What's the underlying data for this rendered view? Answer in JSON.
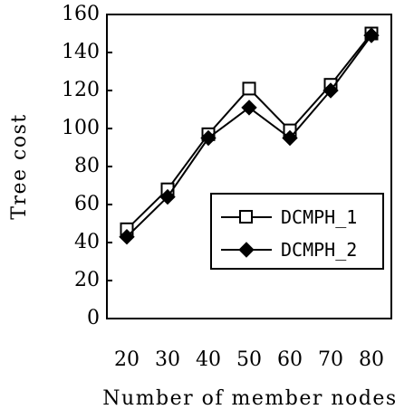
{
  "chart_data": {
    "type": "line",
    "title": "",
    "xlabel": "Number of member nodes",
    "ylabel": "Tree cost",
    "categories": [
      "20",
      "30",
      "40",
      "50",
      "60",
      "70",
      "80"
    ],
    "x": [
      20,
      30,
      40,
      50,
      60,
      70,
      80
    ],
    "ylim": [
      0,
      160
    ],
    "yticks": [
      0,
      20,
      40,
      60,
      80,
      100,
      120,
      140,
      160
    ],
    "grid": false,
    "legend_position": "lower-right",
    "series": [
      {
        "name": "DCMPH_1",
        "marker": "square-open",
        "color": "#000000",
        "values": [
          47,
          68,
          97,
          121,
          99,
          123,
          150
        ]
      },
      {
        "name": "DCMPH_2",
        "marker": "diamond-filled",
        "color": "#000000",
        "values": [
          43,
          64,
          95,
          111,
          95,
          120,
          149
        ]
      }
    ]
  }
}
